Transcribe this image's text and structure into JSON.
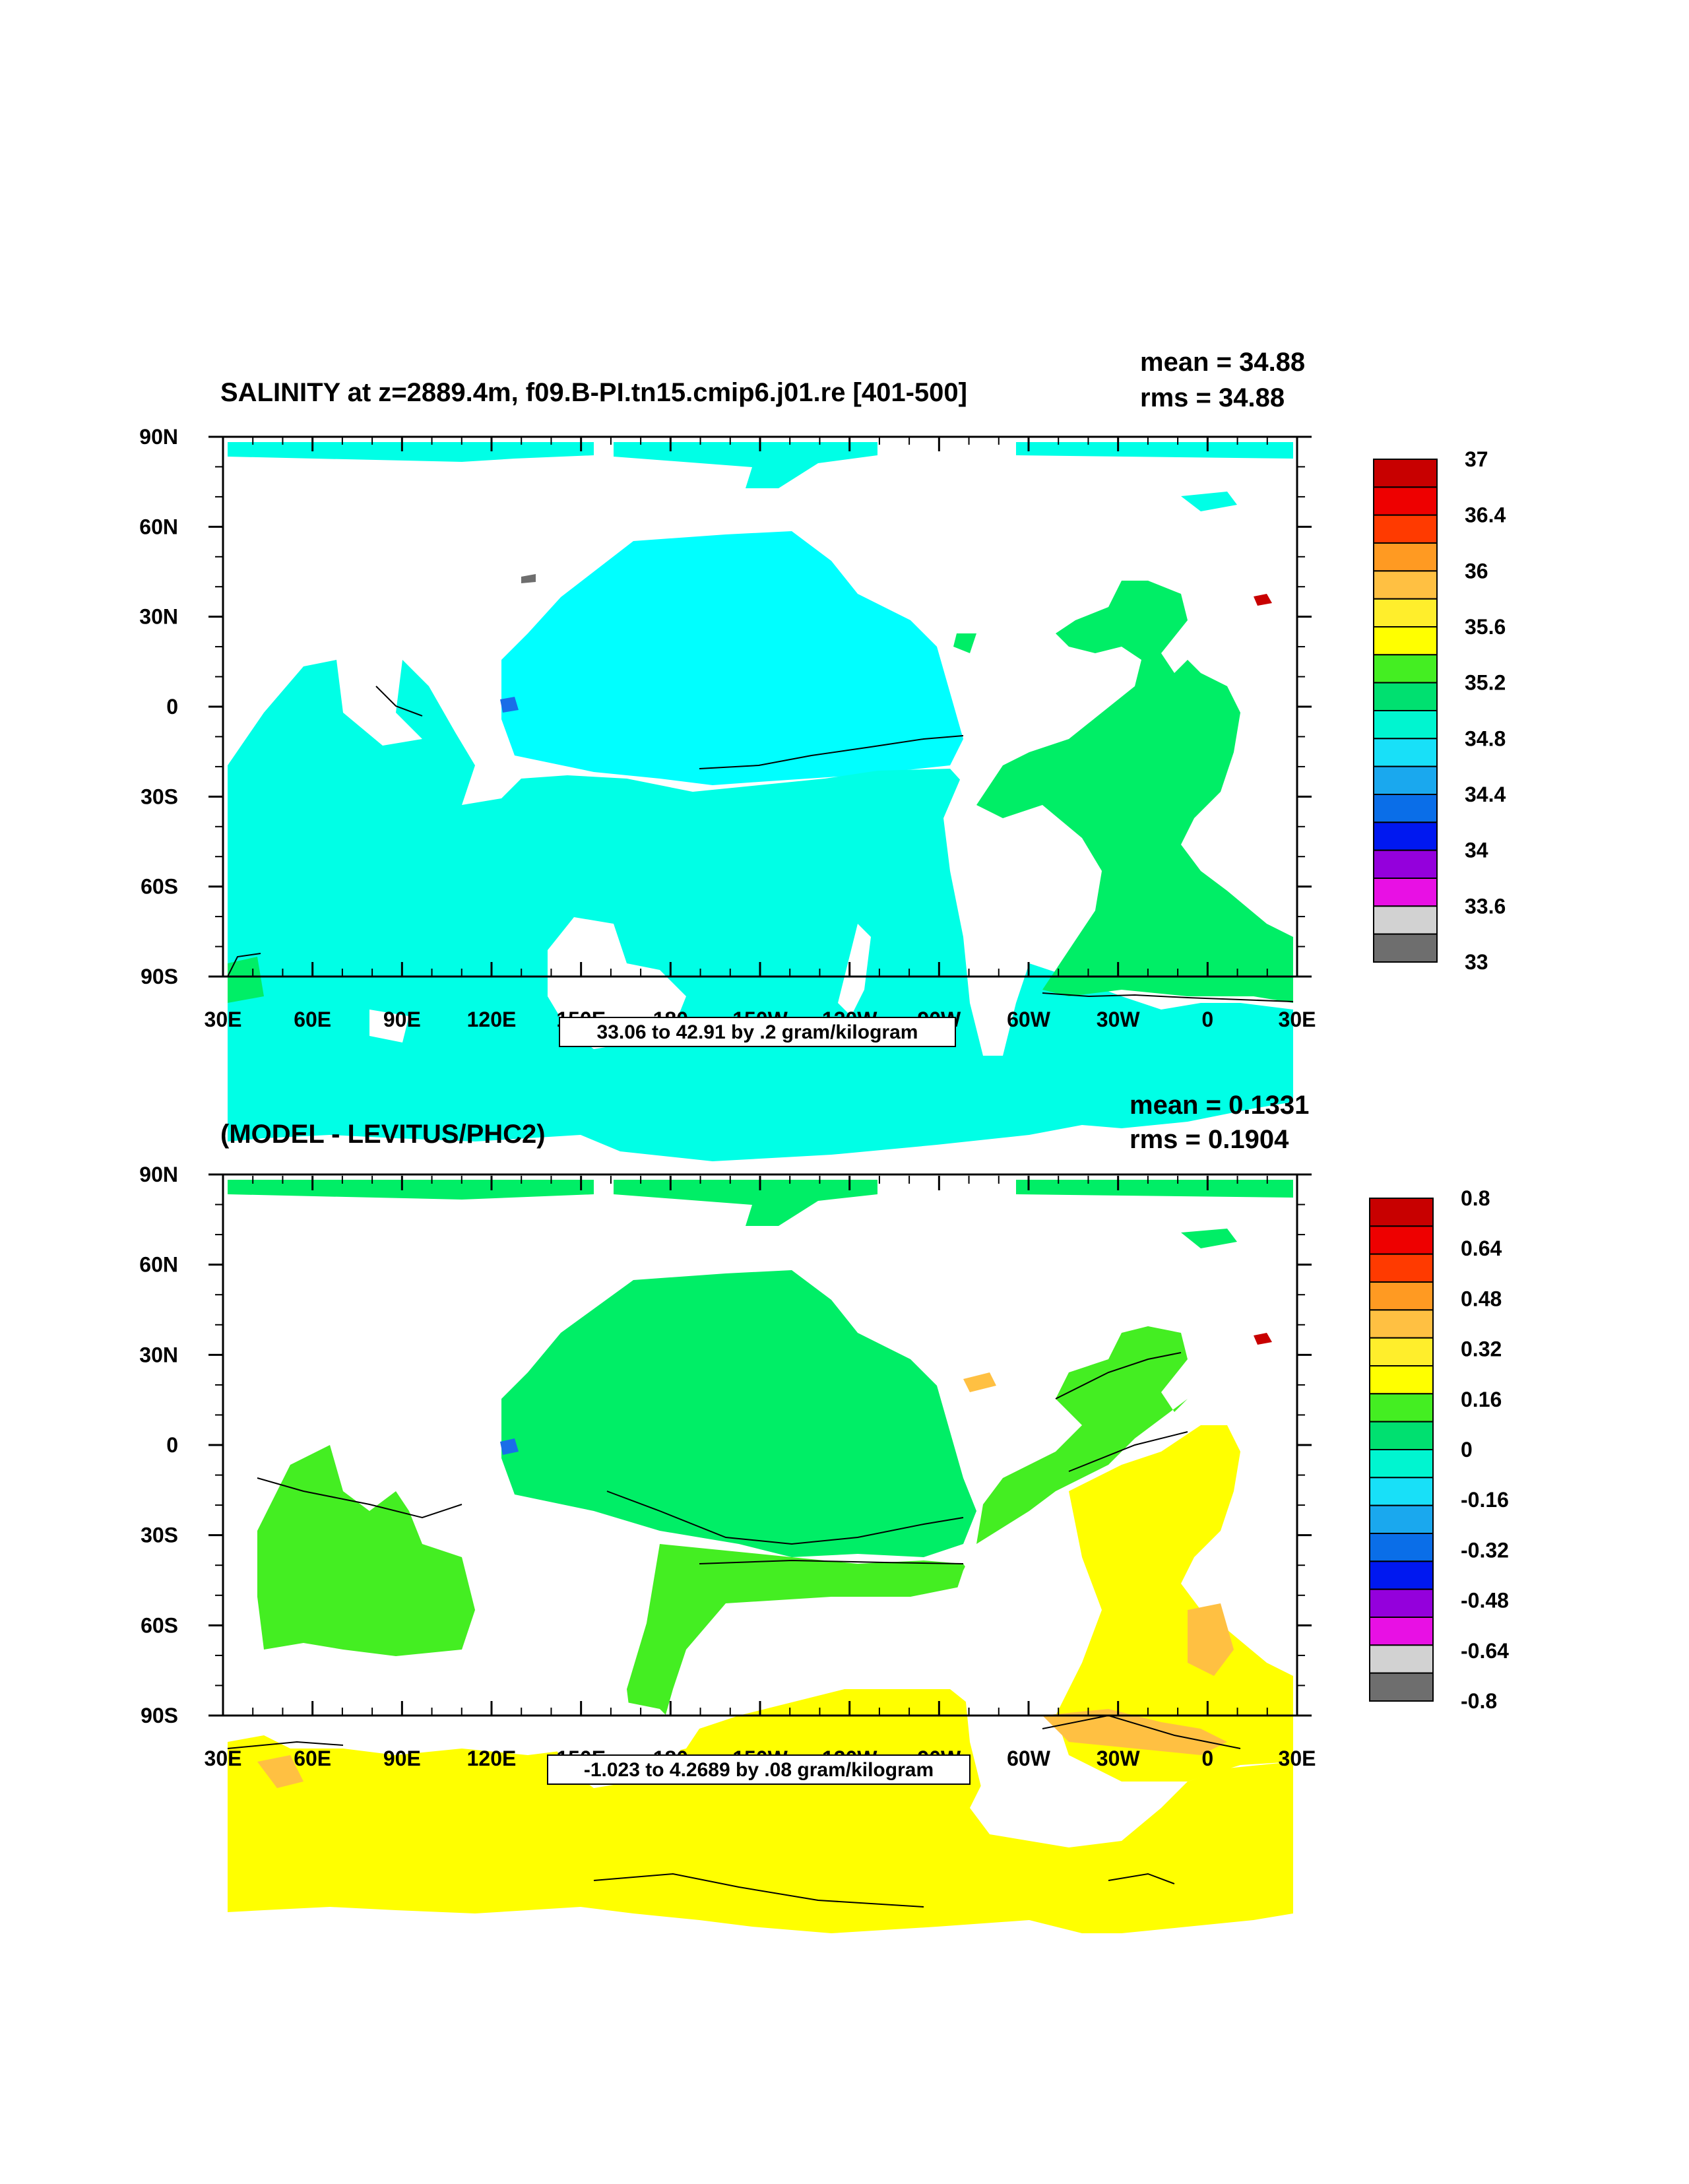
{
  "panels": [
    {
      "title": "SALINITY at z=2889.4m, f09.B-PI.tn15.cmip6.j01.re [401-500]",
      "mean": "mean = 34.88",
      "rms": "rms = 34.88",
      "lat_labels": [
        "90N",
        "60N",
        "30N",
        "0",
        "30S",
        "60S",
        "90S"
      ],
      "lon_labels": [
        "30E",
        "60E",
        "90E",
        "120E",
        "150E",
        "180",
        "150W",
        "120W",
        "90W",
        "60W",
        "30W",
        "0",
        "30E"
      ],
      "info": "33.06 to 42.91 by .2 gram/kilogram",
      "colorbar_labels": [
        "37",
        "36.4",
        "36",
        "35.6",
        "35.2",
        "34.8",
        "34.4",
        "34",
        "33.6",
        "33"
      ],
      "colorbar_colors": [
        "#c80000",
        "#ee0000",
        "#ff3a00",
        "#ff9a22",
        "#ffc042",
        "#ffee2c",
        "#ffff00",
        "#44ee22",
        "#00e070",
        "#00f5d0",
        "#18e0f8",
        "#1aa8ee",
        "#0a6ee8",
        "#0018f0",
        "#9400dc",
        "#e810e4",
        "#d2d2d2",
        "#6e6e6e"
      ],
      "dominant_colors": {
        "pacific": "#00ffe6",
        "north_pacific": "#00ffff",
        "atlantic": "#00ee66"
      }
    },
    {
      "title": "(MODEL - LEVITUS/PHC2)",
      "mean": "mean = 0.1331",
      "rms": "rms = 0.1904",
      "lat_labels": [
        "90N",
        "60N",
        "30N",
        "0",
        "30S",
        "60S",
        "90S"
      ],
      "lon_labels": [
        "30E",
        "60E",
        "90E",
        "120E",
        "150E",
        "180",
        "150W",
        "120W",
        "90W",
        "60W",
        "30W",
        "0",
        "30E"
      ],
      "info": "-1.023 to 4.2689 by .08 gram/kilogram",
      "colorbar_labels": [
        "0.8",
        "0.64",
        "0.48",
        "0.32",
        "0.16",
        "0",
        "-0.16",
        "-0.32",
        "-0.48",
        "-0.64",
        "-0.8"
      ],
      "colorbar_colors": [
        "#c80000",
        "#ee0000",
        "#ff3a00",
        "#ff9a22",
        "#ffc042",
        "#ffee2c",
        "#ffff00",
        "#44ee22",
        "#00e070",
        "#00f5d0",
        "#18e0f8",
        "#1aa8ee",
        "#0a6ee8",
        "#0018f0",
        "#9400dc",
        "#e810e4",
        "#d2d2d2",
        "#6e6e6e"
      ],
      "dominant_colors": {
        "north": "#00ee66",
        "south": "#ffff00",
        "tropical": "#44ee22"
      }
    }
  ]
}
